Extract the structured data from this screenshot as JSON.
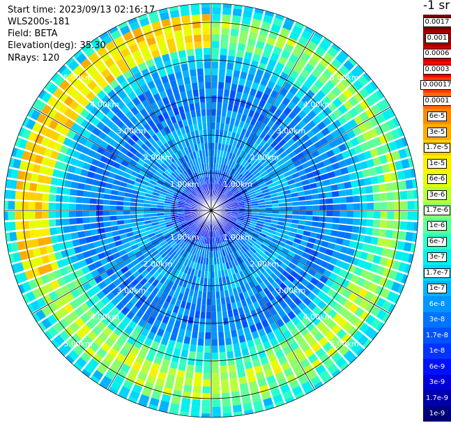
{
  "header": {
    "start_time": "Start time: 2023/09/13 02:16:17",
    "device": "WLS200s-181",
    "field": "Field: BETA",
    "elevation": "Elevation(deg): 35.30",
    "nrays": "NRays: 120"
  },
  "colorbar": {
    "unit": "-1 sr",
    "levels": [
      {
        "label": "0.0017",
        "color": "#7a0000",
        "boxed": true
      },
      {
        "label": "0.001",
        "color": "#a10000",
        "boxed": true
      },
      {
        "label": "0.0006",
        "color": "#cc0000",
        "boxed": true
      },
      {
        "label": "0.0003",
        "color": "#ff0000",
        "boxed": true
      },
      {
        "label": "0.00017",
        "color": "#ff3a00",
        "boxed": true
      },
      {
        "label": "0.0001",
        "color": "#ff6a00",
        "boxed": true
      },
      {
        "label": "6e-5",
        "color": "#ff8a00",
        "boxed": true
      },
      {
        "label": "3e-5",
        "color": "#ffab00",
        "boxed": true
      },
      {
        "label": "1.7e-5",
        "color": "#ffd000",
        "boxed": true
      },
      {
        "label": "1e-5",
        "color": "#ffee00",
        "boxed": true
      },
      {
        "label": "6e-6",
        "color": "#e6ff00",
        "boxed": true
      },
      {
        "label": "3e-6",
        "color": "#b8ff3a",
        "boxed": true
      },
      {
        "label": "1.7e-6",
        "color": "#8cff6a",
        "boxed": true
      },
      {
        "label": "1e-6",
        "color": "#5fff9a",
        "boxed": true
      },
      {
        "label": "6e-7",
        "color": "#2effc4",
        "boxed": true
      },
      {
        "label": "3e-7",
        "color": "#00f0ee",
        "boxed": true
      },
      {
        "label": "1.7e-7",
        "color": "#00d4ff",
        "boxed": true
      },
      {
        "label": "1e-7",
        "color": "#00b4ff",
        "boxed": true
      },
      {
        "label": "6e-8",
        "color": "#0096ff",
        "boxed": false
      },
      {
        "label": "3e-8",
        "color": "#0074ff",
        "boxed": false
      },
      {
        "label": "1.7e-8",
        "color": "#0052ff",
        "boxed": false
      },
      {
        "label": "1e-8",
        "color": "#0033ff",
        "boxed": false
      },
      {
        "label": "6e-9",
        "color": "#0010ff",
        "boxed": false
      },
      {
        "label": "3e-9",
        "color": "#0000d8",
        "boxed": false
      },
      {
        "label": "1.7e-9",
        "color": "#0000a8",
        "boxed": false
      },
      {
        "label": "1e-9",
        "color": "#000078",
        "boxed": false
      }
    ]
  },
  "chart_data": {
    "type": "heatmap",
    "projection": "polar-ppi",
    "rays": 120,
    "range_km": 5.5,
    "range_rings_km": [
      1,
      2,
      3,
      4,
      5
    ],
    "range_ring_labels": [
      "1.00km",
      "2.00km",
      "3.00km",
      "4.00km",
      "5.00km"
    ],
    "spoke_angles_deg": [
      0,
      30,
      60,
      90,
      120,
      150,
      180,
      210,
      240,
      270,
      300,
      330
    ],
    "range_bins_km": [
      0.15,
      0.45,
      0.75,
      1.05,
      1.35,
      1.65,
      1.95,
      2.25,
      2.55,
      2.85,
      3.15,
      3.45,
      3.75,
      4.05,
      4.35,
      4.65,
      4.95,
      5.25
    ],
    "typical_log10_beta_by_range": [
      -8.7,
      -8.4,
      -8.1,
      -7.6,
      -7.3,
      -7.2,
      -7.1,
      -7.2,
      -7.4,
      -7.5,
      -7.4,
      -7.3,
      -7.1,
      -6.7,
      -6.3,
      -5.9,
      -5.6,
      -6.6
    ],
    "enhanced_band": {
      "range_km": [
        4.4,
        5.2
      ],
      "azimuth_deg": [
        250,
        360
      ],
      "log10_beta": -4.9
    }
  }
}
